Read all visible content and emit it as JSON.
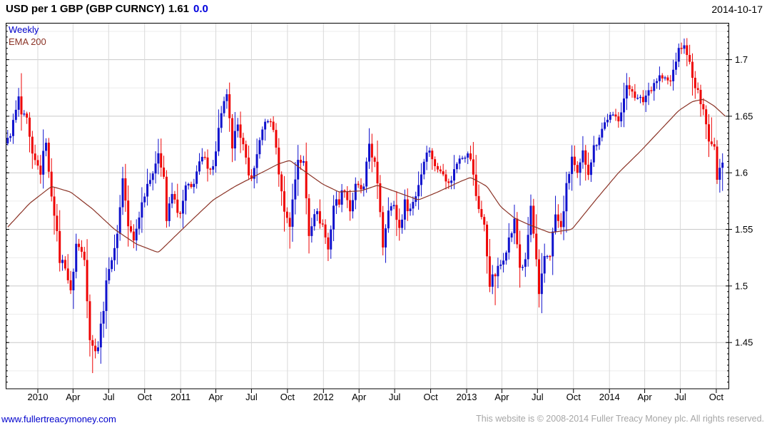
{
  "header": {
    "instrument": "USD per 1 GBP (GBP CURNCY)",
    "last_price": "1.61",
    "change": "0.0",
    "date": "2014-10-17"
  },
  "legend": {
    "series": "Weekly",
    "overlay": "EMA 200"
  },
  "footer": {
    "site": "www.fullertreacymoney.com",
    "copyright": "This website is © 2008-2014 Fuller Treacy Money plc. All rights reserved."
  },
  "palette": {
    "background": "#ffffff",
    "axis": "#000000",
    "grid_major": "#c9c9c9",
    "grid_minor": "#ececec",
    "grid_vertical": "#d9d9d9",
    "title_text": "#000000",
    "change_text": "#0000dd",
    "link": "#0000cc",
    "copyright": "#a6a6a6"
  },
  "chart_data": {
    "type": "candlestick",
    "title": "USD per 1 GBP (GBP CURNCY)",
    "last_price": "1.61",
    "change": "0.0",
    "as_of_date": "2014-10-17",
    "periodicity": "Weekly",
    "grid": "on",
    "legend_position": "top-left-inside",
    "y_axis": {
      "side": "right",
      "min": 1.408,
      "max": 1.733,
      "minor_tick_step": 0.005,
      "minor_grid_step": 0.025,
      "ticks": [
        {
          "value": 1.45,
          "label": "1.45"
        },
        {
          "value": 1.5,
          "label": "1.5"
        },
        {
          "value": 1.55,
          "label": "1.55"
        },
        {
          "value": 1.6,
          "label": "1.6"
        },
        {
          "value": 1.65,
          "label": "1.65"
        },
        {
          "value": 1.7,
          "label": "1.7"
        }
      ]
    },
    "x_axis": {
      "start": "2009-10-16",
      "end": "2014-10-24",
      "ticks": [
        {
          "label": "2010",
          "date": "2010-01-01"
        },
        {
          "label": "Apr",
          "date": "2010-04-01"
        },
        {
          "label": "Jul",
          "date": "2010-07-01"
        },
        {
          "label": "Oct",
          "date": "2010-10-01"
        },
        {
          "label": "2011",
          "date": "2011-01-01"
        },
        {
          "label": "Apr",
          "date": "2011-04-01"
        },
        {
          "label": "Jul",
          "date": "2011-07-01"
        },
        {
          "label": "Oct",
          "date": "2011-10-01"
        },
        {
          "label": "2012",
          "date": "2012-01-01"
        },
        {
          "label": "Apr",
          "date": "2012-04-01"
        },
        {
          "label": "Jul",
          "date": "2012-07-01"
        },
        {
          "label": "Oct",
          "date": "2012-10-01"
        },
        {
          "label": "2013",
          "date": "2013-01-01"
        },
        {
          "label": "Apr",
          "date": "2013-04-01"
        },
        {
          "label": "Jul",
          "date": "2013-07-01"
        },
        {
          "label": "Oct",
          "date": "2013-10-01"
        },
        {
          "label": "2014",
          "date": "2014-01-01"
        },
        {
          "label": "Apr",
          "date": "2014-04-01"
        },
        {
          "label": "Jul",
          "date": "2014-07-01"
        },
        {
          "label": "Oct",
          "date": "2014-10-01"
        }
      ]
    },
    "series": {
      "name": "Weekly",
      "up_color": "#1012cd",
      "down_color": "#ee0404",
      "weekly_close_anchors": [
        [
          "2009-10-16",
          1.628
        ],
        [
          "2009-10-30",
          1.644
        ],
        [
          "2009-11-13",
          1.665
        ],
        [
          "2009-11-20",
          1.651
        ],
        [
          "2009-12-04",
          1.645
        ],
        [
          "2009-12-18",
          1.613
        ],
        [
          "2010-01-08",
          1.601
        ],
        [
          "2010-01-22",
          1.63
        ],
        [
          "2010-01-29",
          1.598
        ],
        [
          "2010-02-12",
          1.566
        ],
        [
          "2010-02-26",
          1.523
        ],
        [
          "2010-03-12",
          1.519
        ],
        [
          "2010-03-26",
          1.493
        ],
        [
          "2010-04-09",
          1.537
        ],
        [
          "2010-04-30",
          1.527
        ],
        [
          "2010-05-14",
          1.454
        ],
        [
          "2010-05-21",
          1.446
        ],
        [
          "2010-06-04",
          1.447
        ],
        [
          "2010-06-18",
          1.482
        ],
        [
          "2010-07-02",
          1.519
        ],
        [
          "2010-07-16",
          1.53
        ],
        [
          "2010-07-30",
          1.569
        ],
        [
          "2010-08-06",
          1.597
        ],
        [
          "2010-08-20",
          1.553
        ],
        [
          "2010-09-03",
          1.539
        ],
        [
          "2010-09-17",
          1.563
        ],
        [
          "2010-10-01",
          1.583
        ],
        [
          "2010-10-15",
          1.598
        ],
        [
          "2010-10-29",
          1.604
        ],
        [
          "2010-11-05",
          1.62
        ],
        [
          "2010-11-19",
          1.597
        ],
        [
          "2010-11-26",
          1.558
        ],
        [
          "2010-12-10",
          1.581
        ],
        [
          "2010-12-31",
          1.561
        ],
        [
          "2011-01-14",
          1.587
        ],
        [
          "2011-01-28",
          1.586
        ],
        [
          "2011-02-11",
          1.601
        ],
        [
          "2011-02-25",
          1.612
        ],
        [
          "2011-03-11",
          1.608
        ],
        [
          "2011-03-25",
          1.604
        ],
        [
          "2011-04-08",
          1.638
        ],
        [
          "2011-04-29",
          1.671
        ],
        [
          "2011-05-13",
          1.618
        ],
        [
          "2011-05-27",
          1.647
        ],
        [
          "2011-06-10",
          1.623
        ],
        [
          "2011-06-24",
          1.596
        ],
        [
          "2011-07-08",
          1.602
        ],
        [
          "2011-07-22",
          1.631
        ],
        [
          "2011-08-05",
          1.641
        ],
        [
          "2011-08-19",
          1.648
        ],
        [
          "2011-09-02",
          1.622
        ],
        [
          "2011-09-16",
          1.58
        ],
        [
          "2011-09-30",
          1.558
        ],
        [
          "2011-10-07",
          1.556
        ],
        [
          "2011-10-21",
          1.595
        ],
        [
          "2011-10-28",
          1.613
        ],
        [
          "2011-11-11",
          1.608
        ],
        [
          "2011-11-25",
          1.546
        ],
        [
          "2011-12-09",
          1.567
        ],
        [
          "2011-12-30",
          1.554
        ],
        [
          "2012-01-13",
          1.532
        ],
        [
          "2012-01-27",
          1.572
        ],
        [
          "2012-02-10",
          1.576
        ],
        [
          "2012-02-24",
          1.587
        ],
        [
          "2012-03-09",
          1.567
        ],
        [
          "2012-03-23",
          1.587
        ],
        [
          "2012-04-13",
          1.585
        ],
        [
          "2012-04-27",
          1.626
        ],
        [
          "2012-05-11",
          1.607
        ],
        [
          "2012-05-25",
          1.567
        ],
        [
          "2012-06-01",
          1.536
        ],
        [
          "2012-06-15",
          1.571
        ],
        [
          "2012-06-29",
          1.569
        ],
        [
          "2012-07-13",
          1.551
        ],
        [
          "2012-07-27",
          1.573
        ],
        [
          "2012-08-10",
          1.568
        ],
        [
          "2012-08-24",
          1.581
        ],
        [
          "2012-09-07",
          1.6
        ],
        [
          "2012-09-21",
          1.622
        ],
        [
          "2012-10-05",
          1.614
        ],
        [
          "2012-10-19",
          1.601
        ],
        [
          "2012-11-02",
          1.603
        ],
        [
          "2012-11-16",
          1.589
        ],
        [
          "2012-11-30",
          1.602
        ],
        [
          "2012-12-14",
          1.616
        ],
        [
          "2012-12-28",
          1.617
        ],
        [
          "2013-01-11",
          1.613
        ],
        [
          "2013-01-25",
          1.58
        ],
        [
          "2013-02-01",
          1.57
        ],
        [
          "2013-02-15",
          1.552
        ],
        [
          "2013-03-01",
          1.503
        ],
        [
          "2013-03-15",
          1.51
        ],
        [
          "2013-03-29",
          1.519
        ],
        [
          "2013-04-12",
          1.534
        ],
        [
          "2013-04-26",
          1.548
        ],
        [
          "2013-05-03",
          1.557
        ],
        [
          "2013-05-17",
          1.517
        ],
        [
          "2013-05-31",
          1.52
        ],
        [
          "2013-06-14",
          1.57
        ],
        [
          "2013-06-28",
          1.521
        ],
        [
          "2013-07-05",
          1.489
        ],
        [
          "2013-07-19",
          1.526
        ],
        [
          "2013-08-02",
          1.529
        ],
        [
          "2013-08-16",
          1.563
        ],
        [
          "2013-08-30",
          1.55
        ],
        [
          "2013-09-13",
          1.587
        ],
        [
          "2013-09-27",
          1.614
        ],
        [
          "2013-10-11",
          1.596
        ],
        [
          "2013-10-25",
          1.617
        ],
        [
          "2013-11-08",
          1.602
        ],
        [
          "2013-11-22",
          1.622
        ],
        [
          "2013-12-06",
          1.634
        ],
        [
          "2013-12-27",
          1.649
        ],
        [
          "2014-01-10",
          1.648
        ],
        [
          "2014-01-24",
          1.649
        ],
        [
          "2014-02-14",
          1.674
        ],
        [
          "2014-02-28",
          1.675
        ],
        [
          "2014-03-14",
          1.664
        ],
        [
          "2014-03-28",
          1.664
        ],
        [
          "2014-04-11",
          1.673
        ],
        [
          "2014-04-25",
          1.68
        ],
        [
          "2014-05-09",
          1.685
        ],
        [
          "2014-05-23",
          1.682
        ],
        [
          "2014-06-06",
          1.68
        ],
        [
          "2014-06-20",
          1.701
        ],
        [
          "2014-07-04",
          1.712
        ],
        [
          "2014-07-18",
          1.708
        ],
        [
          "2014-08-01",
          1.682
        ],
        [
          "2014-08-15",
          1.669
        ],
        [
          "2014-08-29",
          1.66
        ],
        [
          "2014-09-12",
          1.627
        ],
        [
          "2014-09-19",
          1.629
        ],
        [
          "2014-09-26",
          1.624
        ],
        [
          "2014-10-03",
          1.597
        ],
        [
          "2014-10-10",
          1.607
        ],
        [
          "2014-10-17",
          1.609
        ]
      ],
      "key_extremes": [
        {
          "date": "2009-11-20",
          "high": 1.688
        },
        {
          "date": "2010-05-21",
          "low": 1.423
        },
        {
          "date": "2010-11-05",
          "high": 1.63
        },
        {
          "date": "2011-04-29",
          "high": 1.674
        },
        {
          "date": "2011-10-07",
          "low": 1.533
        },
        {
          "date": "2012-01-13",
          "low": 1.522
        },
        {
          "date": "2012-06-01",
          "low": 1.527
        },
        {
          "date": "2012-07-13",
          "low": 1.54
        },
        {
          "date": "2013-03-15",
          "low": 1.483
        },
        {
          "date": "2013-07-05",
          "low": 1.481
        },
        {
          "date": "2014-07-18",
          "high": 1.719
        },
        {
          "date": "2014-09-19",
          "high": 1.649
        },
        {
          "date": "2014-10-17",
          "low": 1.584
        }
      ]
    },
    "overlay": {
      "name": "EMA 200",
      "color": "#8b3326",
      "points": [
        [
          "2009-10-16",
          1.552
        ],
        [
          "2009-12-11",
          1.573
        ],
        [
          "2010-02-05",
          1.588
        ],
        [
          "2010-03-26",
          1.583
        ],
        [
          "2010-05-21",
          1.568
        ],
        [
          "2010-07-16",
          1.55
        ],
        [
          "2010-09-10",
          1.537
        ],
        [
          "2010-11-05",
          1.5295
        ],
        [
          "2010-12-24",
          1.546
        ],
        [
          "2011-02-04",
          1.56
        ],
        [
          "2011-03-25",
          1.576
        ],
        [
          "2011-05-20",
          1.588
        ],
        [
          "2011-07-15",
          1.598
        ],
        [
          "2011-09-09",
          1.608
        ],
        [
          "2011-10-07",
          1.611
        ],
        [
          "2011-11-11",
          1.602
        ],
        [
          "2011-12-30",
          1.59
        ],
        [
          "2012-02-10",
          1.583
        ],
        [
          "2012-04-06",
          1.584
        ],
        [
          "2012-05-18",
          1.589
        ],
        [
          "2012-07-06",
          1.583
        ],
        [
          "2012-08-31",
          1.576
        ],
        [
          "2012-10-19",
          1.583
        ],
        [
          "2012-12-14",
          1.592
        ],
        [
          "2013-01-11",
          1.596
        ],
        [
          "2013-02-22",
          1.588
        ],
        [
          "2013-03-29",
          1.57
        ],
        [
          "2013-05-03",
          1.56
        ],
        [
          "2013-06-07",
          1.5545
        ],
        [
          "2013-08-02",
          1.547
        ],
        [
          "2013-09-27",
          1.55
        ],
        [
          "2013-11-29",
          1.577
        ],
        [
          "2014-01-24",
          1.6
        ],
        [
          "2014-03-21",
          1.619
        ],
        [
          "2014-05-09",
          1.637
        ],
        [
          "2014-06-27",
          1.655
        ],
        [
          "2014-08-01",
          1.663
        ],
        [
          "2014-08-29",
          1.665
        ],
        [
          "2014-09-26",
          1.659
        ],
        [
          "2014-10-24",
          1.65
        ]
      ]
    }
  }
}
